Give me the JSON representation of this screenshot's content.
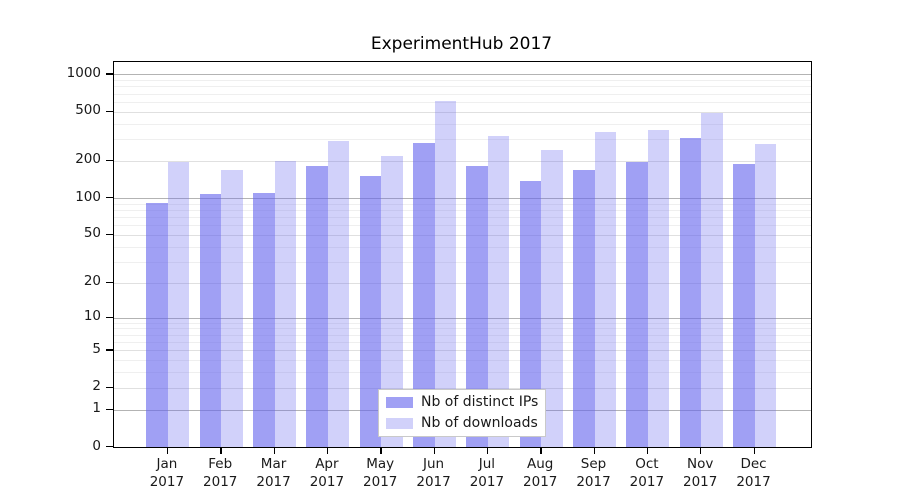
{
  "title": "ExperimentHub 2017",
  "chart_data": {
    "type": "bar",
    "title": "ExperimentHub 2017",
    "categories": [
      "Jan",
      "Feb",
      "Mar",
      "Apr",
      "May",
      "Jun",
      "Jul",
      "Aug",
      "Sep",
      "Oct",
      "Nov",
      "Dec"
    ],
    "category_year": "2017",
    "series": [
      {
        "name": "Nb of distinct IPs",
        "color": "rgba(102,102,238,0.62)",
        "values": [
          91,
          108,
          110,
          181,
          151,
          279,
          182,
          138,
          169,
          195,
          305,
          188
        ]
      },
      {
        "name": "Nb of downloads",
        "color": "rgba(102,102,238,0.30)",
        "values": [
          196,
          170,
          201,
          289,
          221,
          612,
          321,
          247,
          340,
          354,
          490,
          276
        ]
      }
    ],
    "xlabel": "",
    "ylabel": "",
    "y_scale": "log10(value+1)",
    "y_ticks": [
      0,
      1,
      2,
      5,
      10,
      20,
      50,
      100,
      200,
      500,
      1000
    ],
    "y_minor_gridlines": [
      3,
      4,
      6,
      7,
      8,
      9,
      30,
      40,
      60,
      70,
      80,
      90,
      300,
      400,
      600,
      700,
      800,
      900
    ],
    "ylim": [
      0,
      1000
    ],
    "grid": "on",
    "legend_position": "bottom-center-inside"
  },
  "legend": {
    "items": [
      {
        "label": "Nb of distinct IPs",
        "swatch_color": "rgba(102,102,238,0.62)"
      },
      {
        "label": "Nb of downloads",
        "swatch_color": "rgba(102,102,238,0.30)"
      }
    ]
  },
  "colors": {
    "bar_base": "#6666ee",
    "gridline_major": "#b3b3b3",
    "gridline_labeled": "#e0e0e0",
    "gridline_minor": "#efefef",
    "axis": "#000000",
    "background": "#ffffff"
  }
}
